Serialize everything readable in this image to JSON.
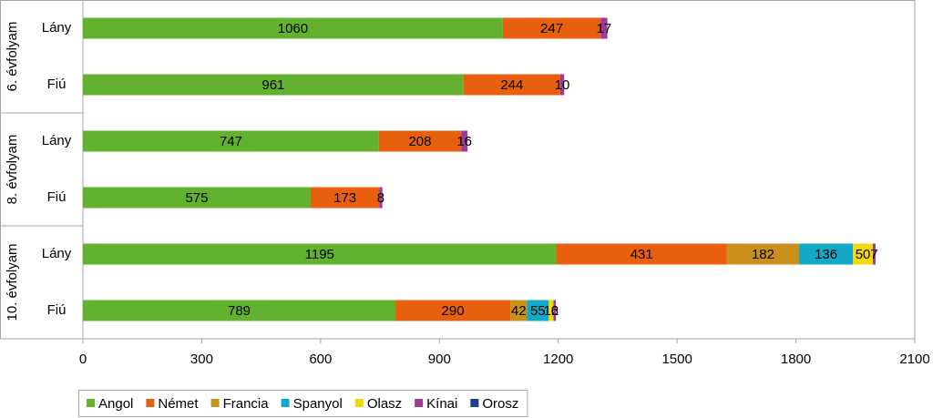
{
  "chart_data": {
    "type": "stacked-horizontal-bar",
    "groups": [
      "6. évfolyam",
      "8. évfolyam",
      "10. évfolyam"
    ],
    "categories": [
      "Lány",
      "Fiú",
      "Lány",
      "Fiú",
      "Lány",
      "Fiú"
    ],
    "series": [
      {
        "name": "Angol",
        "color": "#62b22f",
        "values": [
          1060,
          961,
          747,
          575,
          1195,
          789
        ]
      },
      {
        "name": "Német",
        "color": "#e8600f",
        "values": [
          247,
          244,
          208,
          173,
          431,
          290
        ]
      },
      {
        "name": "Francia",
        "color": "#c9901b",
        "values": [
          null,
          null,
          null,
          null,
          182,
          42
        ]
      },
      {
        "name": "Spanyol",
        "color": "#13a9c6",
        "values": [
          null,
          null,
          null,
          null,
          136,
          55
        ]
      },
      {
        "name": "Olasz",
        "color": "#f4d90a",
        "values": [
          null,
          null,
          null,
          null,
          50,
          12
        ]
      },
      {
        "name": "Kínai",
        "color": "#9b3b97",
        "values": [
          17,
          10,
          16,
          8,
          7,
          6
        ]
      },
      {
        "name": "Orosz",
        "color": "#1f3c8e",
        "values": [
          null,
          null,
          null,
          null,
          null,
          null
        ]
      }
    ],
    "xlim": [
      0,
      2100
    ],
    "xticks": [
      0,
      300,
      600,
      900,
      1200,
      1500,
      1800,
      2100
    ]
  }
}
